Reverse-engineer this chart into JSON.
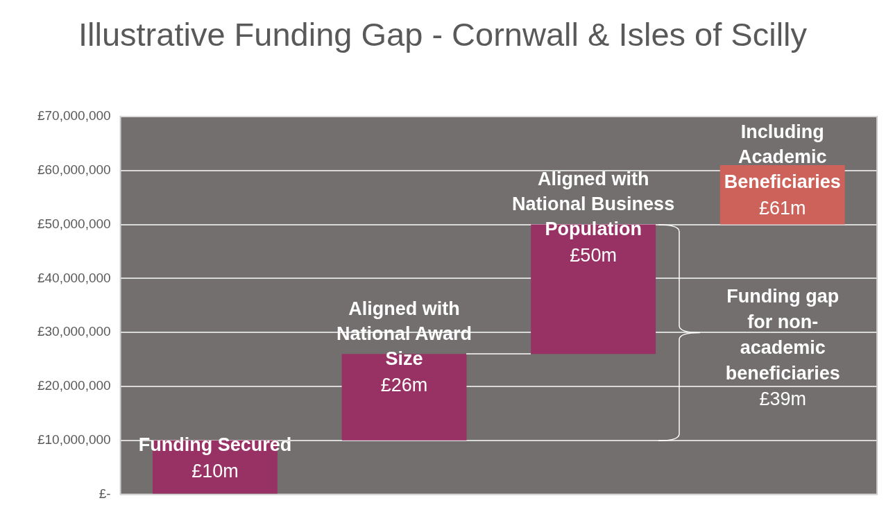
{
  "chart_data": {
    "type": "bar",
    "title": "Illustrative Funding Gap - Cornwall & Isles of Scilly",
    "categories": [
      "Funding Secured",
      "Aligned with National Award Size",
      "Aligned with National Business Population",
      "Including Academic Beneficiaries"
    ],
    "values": [
      10000000,
      16000000,
      24000000,
      11000000
    ],
    "base": [
      0,
      10000000,
      26000000,
      50000000
    ],
    "colors": [
      "#993264",
      "#993264",
      "#993264",
      "#cd625b"
    ],
    "value_labels": [
      "£10m",
      "£26m",
      "£50m",
      "£61m"
    ],
    "ylim": [
      0,
      70000000
    ],
    "yticks": [
      {
        "value": 0,
        "label": "£-"
      },
      {
        "value": 10000000,
        "label": "£10,000,000"
      },
      {
        "value": 20000000,
        "label": "£20,000,000"
      },
      {
        "value": 30000000,
        "label": "£30,000,000"
      },
      {
        "value": 40000000,
        "label": "£40,000,000"
      },
      {
        "value": 50000000,
        "label": "£50,000,000"
      },
      {
        "value": 60000000,
        "label": "£60,000,000"
      },
      {
        "value": 70000000,
        "label": "£70,000,000"
      }
    ],
    "annotations": [
      "Funding gap for non-academic beneficiaries",
      "£39m"
    ],
    "grid": "y",
    "legend": false
  }
}
